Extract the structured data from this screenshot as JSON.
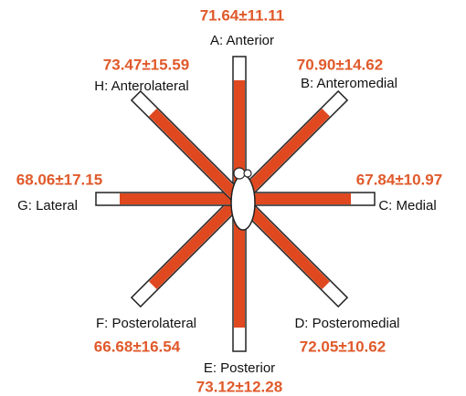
{
  "directions": [
    {
      "label": "A: Anterior",
      "value": "71.64±11.11"
    },
    {
      "label": "B: Anteromedial",
      "value": "70.90±14.62"
    },
    {
      "label": "C: Medial",
      "value": "67.84±10.97"
    },
    {
      "label": "D: Posteromedial",
      "value": "72.05±10.62"
    },
    {
      "label": "E: Posterior",
      "value": "73.12±12.28"
    },
    {
      "label": "F: Posterolateral",
      "value": "66.68±16.54"
    },
    {
      "label": "G: Lateral",
      "value": "68.06±17.15"
    },
    {
      "label": "H: Anterolateral",
      "value": "73.47±15.59"
    }
  ]
}
